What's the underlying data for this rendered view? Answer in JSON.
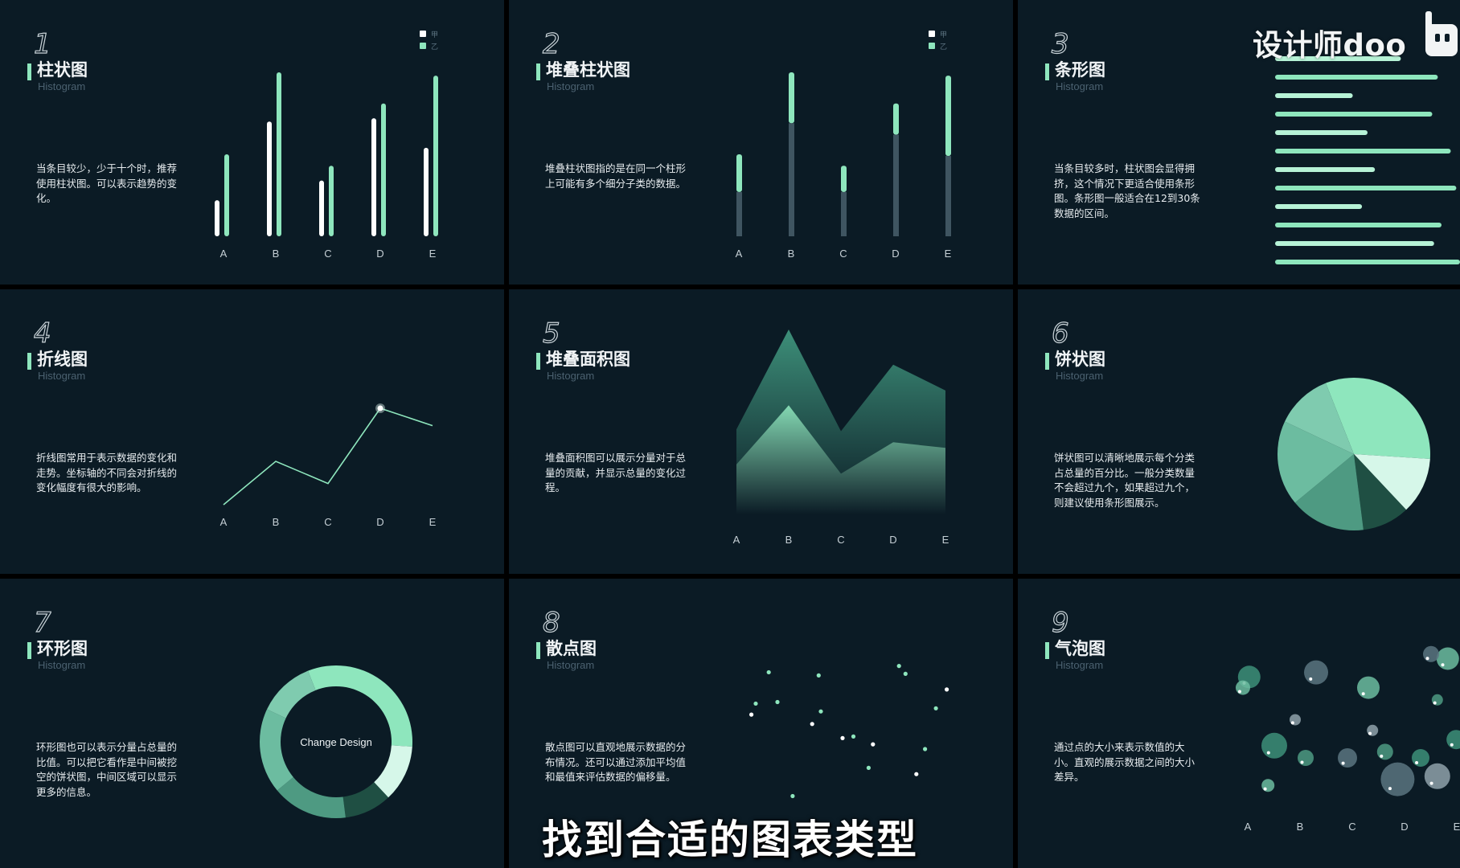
{
  "panels": [
    {
      "num": "1",
      "title": "柱状图",
      "subtitle": "Histogram",
      "desc": "当条目较少，少于十个时，推荐使用柱状图。可以表示趋势的变化。"
    },
    {
      "num": "2",
      "title": "堆叠柱状图",
      "subtitle": "Histogram",
      "desc": "堆叠柱状图指的是在同一个柱形上可能有多个细分子类的数据。"
    },
    {
      "num": "3",
      "title": "条形图",
      "subtitle": "Histogram",
      "desc": "当条目较多时，柱状图会显得拥挤，这个情况下更适合使用条形图。条形图一般适合在12到30条数据的区间。"
    },
    {
      "num": "4",
      "title": "折线图",
      "subtitle": "Histogram",
      "desc": "折线图常用于表示数据的变化和走势。坐标轴的不同会对折线的变化幅度有很大的影响。"
    },
    {
      "num": "5",
      "title": "堆叠面积图",
      "subtitle": "Histogram",
      "desc": "堆叠面积图可以展示分量对于总量的贡献，并显示总量的变化过程。"
    },
    {
      "num": "6",
      "title": "饼状图",
      "subtitle": "Histogram",
      "desc": "饼状图可以清晰地展示每个分类占总量的百分比。一般分类数量不会超过九个，如果超过九个，则建议使用条形图展示。"
    },
    {
      "num": "7",
      "title": "环形图",
      "subtitle": "Histogram",
      "desc": "环形图也可以表示分量占总量的比值。可以把它看作是中间被挖空的饼状图，中间区域可以显示更多的信息。"
    },
    {
      "num": "8",
      "title": "散点图",
      "subtitle": "Histogram",
      "desc": "散点图可以直观地展示数据的分布情况。还可以通过添加平均值和最值来评估数据的偏移量。"
    },
    {
      "num": "9",
      "title": "气泡图",
      "subtitle": "Histogram",
      "desc": "通过点的大小来表示数值的大小。直观的展示数据之间的大小差异。"
    }
  ],
  "watermark": "设计师doo",
  "caption": "找到合适的图表类型",
  "colors": {
    "accent": "#8ee6bd",
    "bg": "#0b1b25",
    "white": "#ffffff",
    "gray": "#3f5561"
  },
  "chart_data": [
    {
      "type": "bar",
      "categories": [
        "A",
        "B",
        "C",
        "D",
        "E"
      ],
      "legend": [
        "甲",
        "乙"
      ],
      "series": [
        {
          "name": "甲",
          "values": [
            22,
            70,
            34,
            72,
            54
          ]
        },
        {
          "name": "乙",
          "values": [
            50,
            100,
            43,
            81,
            98
          ]
        }
      ],
      "ylim": [
        0,
        100
      ]
    },
    {
      "type": "bar",
      "stacked": true,
      "categories": [
        "A",
        "B",
        "C",
        "D",
        "E"
      ],
      "legend": [
        "甲",
        "乙"
      ],
      "series": [
        {
          "name": "甲",
          "values": [
            27,
            69,
            27,
            62,
            49
          ]
        },
        {
          "name": "乙",
          "values": [
            23,
            31,
            16,
            19,
            49
          ]
        }
      ],
      "ylim": [
        0,
        100
      ]
    },
    {
      "type": "bar",
      "orientation": "horizontal",
      "values": [
        68,
        88,
        42,
        85,
        50,
        95,
        54,
        98,
        47,
        90,
        86,
        100
      ],
      "xlim": [
        0,
        100
      ]
    },
    {
      "type": "line",
      "categories": [
        "A",
        "B",
        "C",
        "D",
        "E"
      ],
      "values": [
        0,
        45,
        22,
        100,
        82
      ],
      "highlight_index": 3,
      "ylim": [
        0,
        100
      ]
    },
    {
      "type": "area",
      "stacked": true,
      "categories": [
        "A",
        "B",
        "C",
        "D",
        "E"
      ],
      "series": [
        {
          "values": [
            27,
            59,
            22,
            39,
            36
          ]
        },
        {
          "values": [
            19,
            41,
            23,
            42,
            31
          ]
        }
      ],
      "ylim": [
        0,
        100
      ]
    },
    {
      "type": "pie",
      "values": [
        32,
        12,
        10,
        16,
        18,
        12
      ]
    },
    {
      "type": "pie",
      "donut": true,
      "center_label": "Change Design",
      "values": [
        32,
        12,
        10,
        16,
        18,
        12
      ]
    },
    {
      "type": "scatter",
      "points": [
        [
          0.08,
          0.62
        ],
        [
          0.2,
          0.7
        ],
        [
          0.27,
          0.1
        ],
        [
          0.36,
          0.56
        ],
        [
          0.4,
          0.64
        ],
        [
          0.39,
          0.87
        ],
        [
          0.5,
          0.47
        ],
        [
          0.55,
          0.48
        ],
        [
          0.62,
          0.28
        ],
        [
          0.64,
          0.43
        ],
        [
          0.76,
          0.93
        ],
        [
          0.79,
          0.88
        ],
        [
          0.84,
          0.24
        ],
        [
          0.88,
          0.4
        ],
        [
          0.93,
          0.66
        ],
        [
          0.98,
          0.78
        ],
        [
          0.16,
          0.89
        ],
        [
          0.1,
          0.69
        ]
      ]
    },
    {
      "type": "scatter",
      "bubble": true,
      "categories": [
        "A",
        "B",
        "C",
        "D",
        "E"
      ],
      "points": [
        [
          0.03,
          0.83,
          14
        ],
        [
          0.0,
          0.76,
          9
        ],
        [
          0.35,
          0.86,
          15
        ],
        [
          0.25,
          0.55,
          7
        ],
        [
          0.3,
          0.3,
          10
        ],
        [
          0.15,
          0.38,
          16
        ],
        [
          0.12,
          0.12,
          8
        ],
        [
          0.5,
          0.3,
          12
        ],
        [
          0.62,
          0.48,
          7
        ],
        [
          0.68,
          0.34,
          10
        ],
        [
          0.85,
          0.3,
          11
        ],
        [
          0.6,
          0.76,
          14
        ],
        [
          0.74,
          0.16,
          21
        ],
        [
          0.93,
          0.18,
          16
        ],
        [
          0.93,
          0.68,
          7
        ],
        [
          1.02,
          0.42,
          12
        ],
        [
          0.98,
          0.95,
          14
        ],
        [
          0.9,
          0.98,
          10
        ]
      ]
    }
  ]
}
